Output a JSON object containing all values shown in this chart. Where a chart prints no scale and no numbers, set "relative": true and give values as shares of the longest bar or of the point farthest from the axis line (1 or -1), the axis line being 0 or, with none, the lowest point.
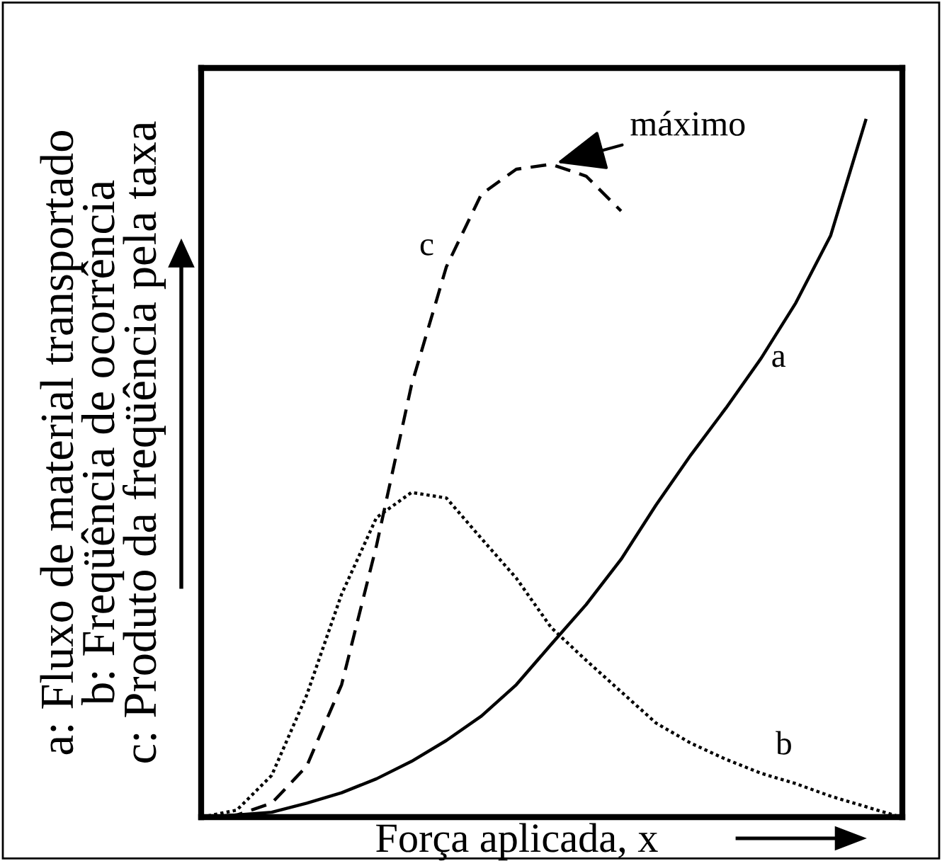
{
  "chart_data": {
    "type": "line",
    "relative": true,
    "tick_labels": false,
    "xlabel": "Força aplicada, x",
    "ylabel": "a: Fluxo de material transportado\nb: Freqüência de ocorrência\nc: Produto da freqüência pela taxa",
    "categories": [
      null,
      null,
      null,
      null,
      null,
      null,
      null,
      null,
      null,
      null,
      null,
      null,
      null,
      null,
      null,
      null,
      null,
      null,
      null,
      null,
      null
    ],
    "annotations": [
      "máximo"
    ],
    "series": [
      {
        "name": "a",
        "color": "#000000",
        "line_style": "solid",
        "values": [
          0,
          0.003,
          0.007,
          0.02,
          0.035,
          0.055,
          0.08,
          0.11,
          0.145,
          0.19,
          0.248,
          0.305,
          0.37,
          0.448,
          0.52,
          0.587,
          0.658,
          0.738,
          0.835,
          1,
          null
        ]
      },
      {
        "name": "b",
        "color": "#000000",
        "line_style": "dotted",
        "values": [
          0,
          0.01,
          0.06,
          0.175,
          0.32,
          0.43,
          0.466,
          0.458,
          0.4,
          0.343,
          0.272,
          0.225,
          0.18,
          0.135,
          0.106,
          0.083,
          0.063,
          0.048,
          0.03,
          0.015,
          0
        ]
      },
      {
        "name": "c",
        "color": "#000000",
        "line_style": "dashed",
        "values": [
          0,
          0.003,
          0.02,
          0.073,
          0.19,
          0.39,
          0.62,
          0.79,
          0.894,
          0.93,
          0.937,
          0.92,
          0.87,
          null,
          null,
          null,
          null,
          null,
          null,
          null,
          null
        ]
      }
    ]
  }
}
